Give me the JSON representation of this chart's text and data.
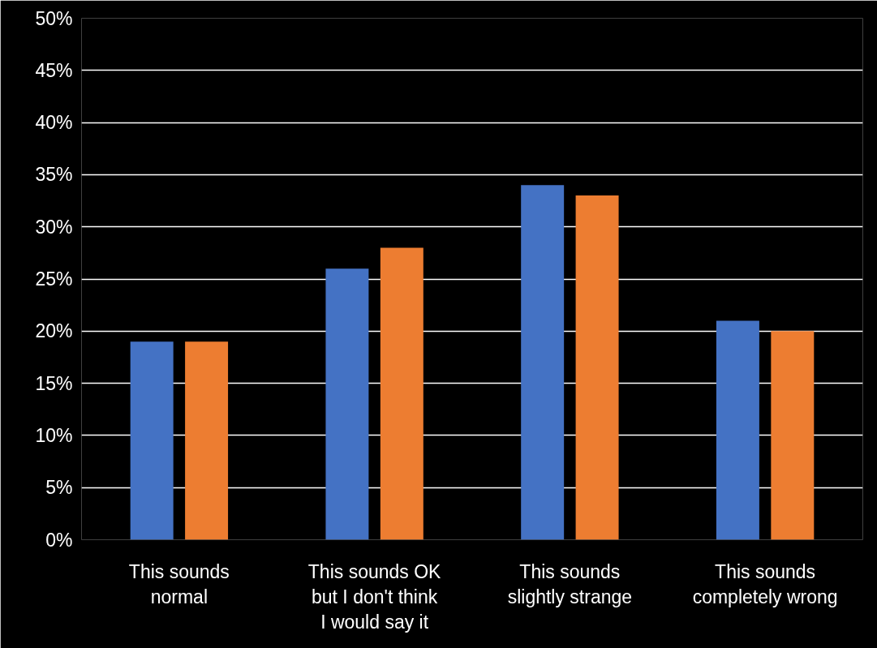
{
  "chart_data": {
    "type": "bar",
    "categories": [
      "This sounds normal",
      "This sounds OK but I don't think I would say it",
      "This sounds slightly strange",
      "This sounds completely wrong"
    ],
    "series": [
      {
        "color": "#4472c4",
        "values": [
          19,
          26,
          34,
          21
        ]
      },
      {
        "color": "#ed7d31",
        "values": [
          19,
          28,
          33,
          20
        ]
      }
    ],
    "ylim": [
      0,
      50
    ],
    "yticks": [
      {
        "value": 0,
        "label": "0%"
      },
      {
        "value": 5,
        "label": "5%"
      },
      {
        "value": 10,
        "label": "10%"
      },
      {
        "value": 15,
        "label": "15%"
      },
      {
        "value": 20,
        "label": "20%"
      },
      {
        "value": 25,
        "label": "25%"
      },
      {
        "value": 30,
        "label": "30%"
      },
      {
        "value": 35,
        "label": "35%"
      },
      {
        "value": 40,
        "label": "40%"
      },
      {
        "value": 45,
        "label": "45%"
      },
      {
        "value": 50,
        "label": "50%"
      }
    ],
    "grid": "y"
  }
}
